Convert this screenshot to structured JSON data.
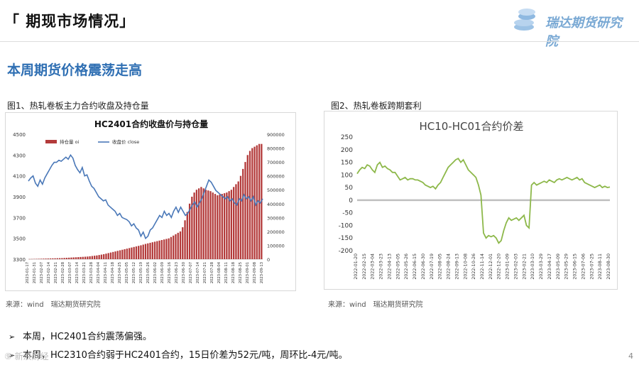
{
  "header": {
    "title": "「 期现市场情况」",
    "logo_text": "瑞达期货研究院",
    "logo_icon": "coin-stack-icon"
  },
  "headline": "本周期货价格震荡走高",
  "figure1": {
    "caption": "图1、热轧卷板主力合约收盘及持仓量",
    "source": "来源：wind　瑞达期货研究院",
    "chart_data": {
      "type": "bar",
      "title": "HC2401合约收盘价与持仓量",
      "legend": [
        "持仓量 oi",
        "收盘价 close"
      ],
      "legend_position": "top-left",
      "left_axis": {
        "ticks": [
          3300,
          3500,
          3700,
          3900,
          4100,
          4300,
          4500
        ],
        "range": [
          3300,
          4500
        ]
      },
      "right_axis": {
        "ticks": [
          0,
          100000,
          200000,
          300000,
          400000,
          500000,
          600000,
          700000,
          800000,
          900000
        ],
        "range": [
          0,
          900000
        ]
      },
      "x_tick_labels": [
        "2023-01-17",
        "2023-01-31",
        "2023-02-07",
        "2023-02-14",
        "2023-02-21",
        "2023-02-28",
        "2023-03-07",
        "2023-03-14",
        "2023-03-21",
        "2023-03-28",
        "2023-04-04",
        "2023-04-11",
        "2023-04-18",
        "2023-04-25",
        "2023-05-05",
        "2023-05-12",
        "2023-05-19",
        "2023-05-26",
        "2023-06-02",
        "2023-06-09",
        "2023-06-16",
        "2023-06-23",
        "2023-06-30",
        "2023-07-07",
        "2023-07-14",
        "2023-07-21",
        "2023-07-28",
        "2023-08-04",
        "2023-08-11",
        "2023-08-18",
        "2023-08-25",
        "2023-09-01",
        "2023-09-08",
        "2023-09-13"
      ],
      "close": [
        4050,
        4080,
        4100,
        4030,
        4000,
        4060,
        4020,
        4080,
        4120,
        4160,
        4200,
        4230,
        4230,
        4250,
        4240,
        4260,
        4280,
        4260,
        4300,
        4270,
        4200,
        4160,
        4130,
        4180,
        4100,
        4110,
        4050,
        4000,
        3980,
        3940,
        3900,
        3880,
        3860,
        3870,
        3820,
        3800,
        3780,
        3760,
        3720,
        3740,
        3700,
        3690,
        3680,
        3660,
        3620,
        3640,
        3600,
        3580,
        3520,
        3560,
        3500,
        3520,
        3580,
        3600,
        3640,
        3680,
        3720,
        3700,
        3760,
        3720,
        3740,
        3700,
        3760,
        3800,
        3750,
        3800,
        3760,
        3720,
        3740,
        3780,
        3820,
        3850,
        3800,
        3840,
        3880,
        3940,
        4000,
        4060,
        4040,
        4000,
        3960,
        3940,
        3920,
        3900,
        3880,
        3900,
        3860,
        3880,
        3840,
        3820,
        3880,
        3860,
        3920,
        3880,
        3900,
        3860,
        3900,
        3820,
        3860,
        3840,
        3880
      ],
      "oi": [
        1000,
        1500,
        2000,
        2500,
        3000,
        3500,
        4000,
        4500,
        5000,
        5500,
        6000,
        6500,
        7000,
        7500,
        8000,
        9000,
        10000,
        11000,
        12000,
        13000,
        14000,
        15000,
        16000,
        17000,
        18000,
        19000,
        21000,
        23000,
        25000,
        27000,
        30000,
        33000,
        36000,
        40000,
        44000,
        48000,
        52000,
        56000,
        60000,
        64000,
        68000,
        72000,
        76000,
        80000,
        84000,
        88000,
        92000,
        96000,
        100000,
        105000,
        110000,
        114000,
        118000,
        122000,
        126000,
        130000,
        134000,
        138000,
        142000,
        146000,
        150000,
        160000,
        170000,
        180000,
        190000,
        200000,
        230000,
        280000,
        340000,
        400000,
        450000,
        480000,
        500000,
        510000,
        520000,
        510000,
        500000,
        495000,
        490000,
        480000,
        470000,
        460000,
        465000,
        470000,
        475000,
        480000,
        490000,
        500000,
        520000,
        540000,
        560000,
        600000,
        650000,
        700000,
        750000,
        780000,
        800000,
        810000,
        820000,
        830000,
        830000
      ],
      "colors": {
        "oi": "#b33a3a",
        "close": "#4a78b8"
      }
    }
  },
  "figure2": {
    "caption": "图2、热轧卷板跨期套利",
    "source": "来源：wind　瑞达期货研究院",
    "chart_data": {
      "type": "line",
      "title": "HC10-HC01合约价差",
      "y_ticks": [
        250,
        200,
        150,
        100,
        50,
        0,
        -50,
        -100,
        -150,
        -200
      ],
      "ylim": [
        -200,
        250
      ],
      "x_tick_labels": [
        "2022-01-20",
        "2022-02-15",
        "2022-03-04",
        "2022-03-23",
        "2022-04-13",
        "2022-05-05",
        "2022-05-26",
        "2022-06-15",
        "2022-06-30",
        "2022-07-19",
        "2022-08-05",
        "2022-08-24",
        "2022-09-13",
        "2022-10-08",
        "2022-10-26",
        "2022-11-14",
        "2022-12-01",
        "2022-12-20",
        "2023-01-09",
        "2023-02-03",
        "2023-02-21",
        "2023-03-10",
        "2023-03-29",
        "2023-04-17",
        "2023-05-09",
        "2023-05-29",
        "2023-06-15",
        "2023-07-06",
        "2023-07-25",
        "2023-08-11",
        "2023-08-30"
      ],
      "values": [
        105,
        120,
        130,
        125,
        140,
        135,
        120,
        110,
        140,
        150,
        130,
        135,
        125,
        120,
        110,
        110,
        95,
        80,
        85,
        90,
        80,
        85,
        85,
        80,
        80,
        75,
        70,
        60,
        55,
        50,
        55,
        45,
        60,
        70,
        90,
        110,
        130,
        140,
        150,
        160,
        165,
        150,
        160,
        140,
        120,
        110,
        100,
        90,
        60,
        20,
        -130,
        -150,
        -140,
        -145,
        -140,
        -150,
        -170,
        -160,
        -120,
        -90,
        -70,
        -80,
        -75,
        -70,
        -80,
        -70,
        -60,
        -100,
        -110,
        60,
        70,
        60,
        65,
        70,
        75,
        70,
        80,
        75,
        70,
        80,
        85,
        80,
        85,
        90,
        85,
        80,
        85,
        90,
        80,
        85,
        70,
        65,
        60,
        55,
        50,
        55,
        60,
        50,
        55,
        50,
        52
      ],
      "baseline_color": "#bfbfbf",
      "line_color": "#8db84a"
    }
  },
  "bullets": [
    "本周，HC2401合约震荡偏强。",
    "本周，HC2310合约弱于HC2401合约，15日价差为52元/吨，周环比-4元/吨。"
  ],
  "watermark": "⑨ 新浪财经",
  "page_number": "4"
}
